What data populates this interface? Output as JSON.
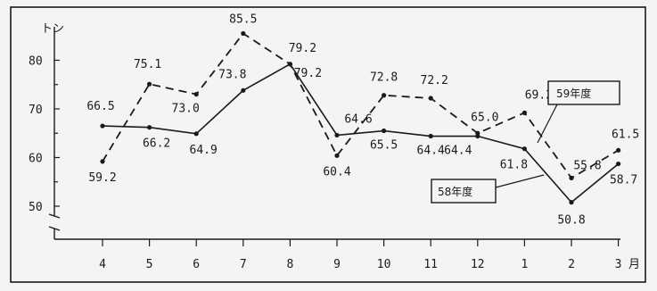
{
  "chart_data": {
    "type": "line",
    "y_unit": "トン",
    "x_unit": "月",
    "categories": [
      "4",
      "5",
      "6",
      "7",
      "8",
      "9",
      "10",
      "11",
      "12",
      "1",
      "2",
      "3"
    ],
    "y_ticks": [
      "80",
      "70",
      "60",
      "50"
    ],
    "ylim": [
      50,
      88
    ],
    "grid": false,
    "series": [
      {
        "name": "59年度",
        "style": "dashed",
        "values": [
          59.2,
          75.1,
          73.0,
          85.5,
          79.2,
          60.4,
          72.8,
          72.2,
          65.0,
          69.2,
          55.8,
          61.5
        ],
        "labels": [
          "59.2",
          "75.1",
          "73.0",
          "85.5",
          "79.2",
          "60.4",
          "72.8",
          "72.2",
          "65.0",
          "69.2",
          "55.8",
          "61.5"
        ]
      },
      {
        "name": "58年度",
        "style": "solid",
        "values": [
          66.5,
          66.2,
          64.9,
          73.8,
          79.2,
          64.6,
          65.5,
          64.4,
          64.4,
          61.8,
          50.8,
          58.7
        ],
        "labels": [
          "66.5",
          "66.2",
          "64.9",
          "73.8",
          "79.2",
          "64.6",
          "65.5",
          "64.4",
          "64.4",
          "61.8",
          "50.8",
          "58.7"
        ]
      }
    ]
  }
}
